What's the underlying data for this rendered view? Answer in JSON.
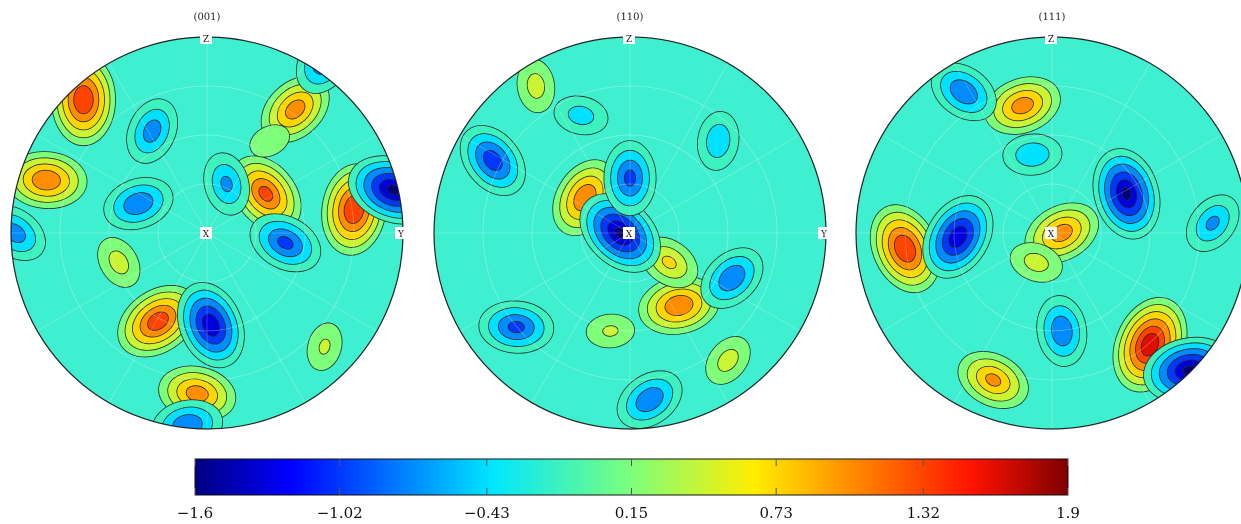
{
  "chart_data": {
    "type": "heatmap",
    "subtype": "pole-figure-contour",
    "panels": [
      {
        "title": "(001)",
        "axis_labels": [
          "Z",
          "X",
          "Y"
        ]
      },
      {
        "title": "(110)",
        "axis_labels": [
          "Z",
          "X",
          "Y"
        ]
      },
      {
        "title": "(111)",
        "axis_labels": [
          "Z",
          "X"
        ]
      }
    ],
    "colorbar": {
      "min": -1.6,
      "max": 1.9,
      "ticks": [
        "−1.6",
        "−1.02",
        "−0.43",
        "0.15",
        "0.73",
        "1.32",
        "1.9"
      ],
      "tick_values": [
        -1.6,
        -1.02,
        -0.43,
        0.15,
        0.73,
        1.32,
        1.9
      ],
      "colormap": "jet",
      "levels": [
        -1.6,
        -1.31,
        -1.02,
        -0.725,
        -0.43,
        -0.14,
        0.15,
        0.44,
        0.73,
        1.025,
        1.32,
        1.61,
        1.9
      ]
    },
    "features": [
      [
        {
          "x": -0.63,
          "y": -0.68,
          "value": 1.6
        },
        {
          "x": 0.45,
          "y": -0.63,
          "value": 1.2
        },
        {
          "x": -0.82,
          "y": -0.27,
          "value": 1.3
        },
        {
          "x": 0.3,
          "y": -0.2,
          "value": 1.4
        },
        {
          "x": 0.75,
          "y": -0.12,
          "value": 1.6
        },
        {
          "x": -0.25,
          "y": 0.45,
          "value": 1.5
        },
        {
          "x": -0.05,
          "y": 0.82,
          "value": 1.2
        },
        {
          "x": -0.45,
          "y": 0.15,
          "value": 0.6
        },
        {
          "x": 0.6,
          "y": 0.58,
          "value": 0.5
        },
        {
          "x": 0.32,
          "y": -0.47,
          "value": 0.4
        },
        {
          "x": 0.95,
          "y": -0.22,
          "value": -1.6
        },
        {
          "x": 0.02,
          "y": 0.47,
          "value": -1.5
        },
        {
          "x": -0.28,
          "y": -0.52,
          "value": -0.9
        },
        {
          "x": -0.35,
          "y": -0.15,
          "value": -1.0
        },
        {
          "x": 0.4,
          "y": 0.05,
          "value": -1.1
        },
        {
          "x": 0.1,
          "y": -0.25,
          "value": -0.8
        },
        {
          "x": 0.6,
          "y": -0.88,
          "value": -1.0
        },
        {
          "x": -0.1,
          "y": 0.98,
          "value": -1.0
        },
        {
          "x": -0.98,
          "y": 0.0,
          "value": -0.9
        }
      ],
      [
        {
          "x": -0.23,
          "y": -0.18,
          "value": 1.3
        },
        {
          "x": 0.25,
          "y": 0.37,
          "value": 1.3
        },
        {
          "x": 0.2,
          "y": 0.15,
          "value": 0.8
        },
        {
          "x": -0.48,
          "y": -0.75,
          "value": 0.6
        },
        {
          "x": 0.5,
          "y": 0.65,
          "value": 0.6
        },
        {
          "x": -0.1,
          "y": 0.5,
          "value": 0.5
        },
        {
          "x": -0.05,
          "y": 0.0,
          "value": -1.6
        },
        {
          "x": 0.0,
          "y": -0.28,
          "value": -1.1
        },
        {
          "x": 0.52,
          "y": 0.23,
          "value": -1.0
        },
        {
          "x": -0.58,
          "y": 0.48,
          "value": -1.1
        },
        {
          "x": -0.7,
          "y": -0.37,
          "value": -1.2
        },
        {
          "x": 0.45,
          "y": -0.47,
          "value": -0.7
        },
        {
          "x": 0.1,
          "y": 0.85,
          "value": -1.0
        },
        {
          "x": -0.25,
          "y": -0.6,
          "value": -0.6
        }
      ],
      [
        {
          "x": 0.05,
          "y": 0.0,
          "value": 1.2
        },
        {
          "x": -0.08,
          "y": 0.15,
          "value": 0.6
        },
        {
          "x": -0.75,
          "y": 0.08,
          "value": 1.6
        },
        {
          "x": 0.5,
          "y": 0.57,
          "value": 1.8
        },
        {
          "x": -0.15,
          "y": -0.65,
          "value": 1.2
        },
        {
          "x": -0.3,
          "y": 0.75,
          "value": 1.1
        },
        {
          "x": 0.38,
          "y": -0.2,
          "value": -1.6
        },
        {
          "x": -0.48,
          "y": 0.02,
          "value": -1.5
        },
        {
          "x": 0.7,
          "y": 0.7,
          "value": -1.6
        },
        {
          "x": -0.45,
          "y": -0.72,
          "value": -1.0
        },
        {
          "x": 0.05,
          "y": 0.5,
          "value": -1.0
        },
        {
          "x": 0.82,
          "y": -0.05,
          "value": -0.8
        },
        {
          "x": -0.1,
          "y": -0.4,
          "value": -0.7
        }
      ]
    ]
  }
}
